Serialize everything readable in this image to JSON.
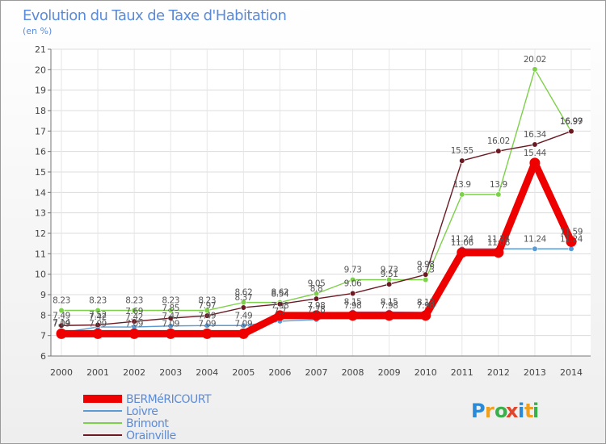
{
  "chart_data": {
    "type": "line",
    "title": "Evolution du Taux de Taxe d'Habitation",
    "subtitle": "(en %)",
    "categories": [
      "2000",
      "2001",
      "2002",
      "2003",
      "2004",
      "2005",
      "2006",
      "2007",
      "2008",
      "2009",
      "2010",
      "2011",
      "2012",
      "2013",
      "2014"
    ],
    "ylim": [
      6,
      21
    ],
    "yticks": [
      6,
      7,
      8,
      9,
      10,
      11,
      12,
      13,
      14,
      15,
      16,
      17,
      18,
      19,
      20,
      21
    ],
    "grid": true,
    "legend_position": "bottom-left",
    "series": [
      {
        "name": "Loivre",
        "color": "#5b9bd5",
        "values": [
          7.14,
          7.42,
          7.42,
          7.47,
          7.49,
          7.49,
          7.7,
          7.78,
          8.15,
          8.15,
          8.13,
          11.24,
          11.24,
          11.24,
          11.24
        ],
        "labels": [
          "7.14",
          "7.42",
          "7.42",
          "7.47",
          "7.49",
          "7.49",
          "7.7",
          "7.78",
          "8.15",
          "8.15",
          "8.13",
          "11.24",
          "11.24",
          "11.24",
          "11.24"
        ]
      },
      {
        "name": "Brimont",
        "color": "#7dd04a",
        "values": [
          8.23,
          8.23,
          8.23,
          8.23,
          8.23,
          8.62,
          8.62,
          9.05,
          9.73,
          9.73,
          9.73,
          13.9,
          13.9,
          20.02,
          16.97
        ],
        "labels": [
          "8.23",
          "8.23",
          "8.23",
          "8.23",
          "8.23",
          "8.62",
          "8.62",
          "9.05",
          "9.73",
          "9.73",
          "9.73",
          "13.9",
          "13.9",
          "20.02",
          "16.97"
        ]
      },
      {
        "name": "Orainville",
        "color": "#6b1a24",
        "values": [
          7.49,
          7.52,
          7.69,
          7.85,
          7.97,
          8.37,
          8.54,
          8.8,
          9.06,
          9.51,
          9.98,
          15.55,
          16.02,
          16.34,
          16.99
        ],
        "labels": [
          "7.49",
          "7.52",
          "7.69",
          "7.85",
          "7.97",
          "8.37",
          "8.54",
          "8.8",
          "9.06",
          "9.51",
          "9.98",
          "15.55",
          "16.02",
          "16.34",
          "16.99"
        ]
      },
      {
        "name": "BERMéRICOURT",
        "color": "#ee0000",
        "values": [
          7.09,
          7.09,
          7.09,
          7.09,
          7.09,
          7.09,
          7.98,
          7.98,
          7.98,
          7.98,
          7.98,
          11.06,
          11.06,
          15.44,
          11.59
        ],
        "labels": [
          "7.09",
          "7.09",
          "7.09",
          "7.09",
          "7.09",
          "7.09",
          "7.98",
          "7.98",
          "7.98",
          "7.98",
          "7.98",
          "11.06",
          "11.06",
          "15.44",
          "11.59"
        ]
      }
    ],
    "legend": [
      "BERMéRICOURT",
      "Loivre",
      "Brimont",
      "Orainville"
    ]
  },
  "brand": {
    "logo_text": "Proxiti",
    "colors": [
      "#2a8ad8",
      "#f0a020",
      "#3ab04a",
      "#e2452c"
    ]
  }
}
